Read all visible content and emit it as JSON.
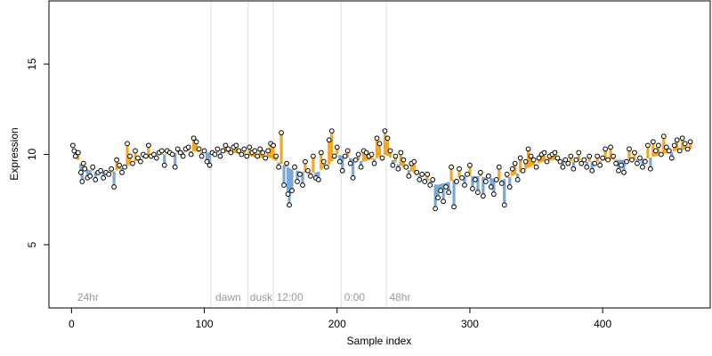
{
  "chart_data": {
    "type": "scatter",
    "title": "",
    "xlabel": "Sample index",
    "ylabel": "Expression",
    "xlim": [
      -17,
      481
    ],
    "ylim": [
      1.5,
      18.5
    ],
    "x_ticks": [
      0,
      100,
      200,
      300,
      400
    ],
    "y_ticks": [
      5,
      10,
      15
    ],
    "grid": false,
    "legend": "none",
    "colors": {
      "point_fill": "#ffffff",
      "point_stroke": "#000000",
      "segment_above": "#f5a623",
      "segment_below": "#7ba7d6",
      "divider": "#dcdcdc",
      "annotation": "#9a9a9a"
    },
    "vertical_lines": [
      105,
      133,
      152,
      203,
      237
    ],
    "annotations": [
      {
        "x": 3,
        "label": "24hr"
      },
      {
        "x": 107,
        "label": "dawn"
      },
      {
        "x": 133,
        "label": "dusk"
      },
      {
        "x": 153,
        "label": "12:00"
      },
      {
        "x": 204,
        "label": "0:00"
      },
      {
        "x": 238,
        "label": "48hr"
      }
    ],
    "anchors": [
      [
        1,
        10.5
      ],
      [
        5,
        9.7
      ],
      [
        10,
        9.2
      ],
      [
        20,
        9.0
      ],
      [
        30,
        9.0
      ],
      [
        40,
        9.3
      ],
      [
        50,
        9.7
      ],
      [
        60,
        9.9
      ],
      [
        70,
        10.0
      ],
      [
        80,
        10.1
      ],
      [
        90,
        10.2
      ],
      [
        100,
        10.1
      ],
      [
        105,
        10.1
      ],
      [
        110,
        10.1
      ],
      [
        120,
        10.1
      ],
      [
        130,
        10.0
      ],
      [
        135,
        9.9
      ],
      [
        140,
        9.8
      ],
      [
        150,
        9.8
      ],
      [
        155,
        9.6
      ],
      [
        165,
        9.2
      ],
      [
        175,
        9.0
      ],
      [
        185,
        9.0
      ],
      [
        195,
        9.5
      ],
      [
        200,
        10.0
      ],
      [
        210,
        9.8
      ],
      [
        220,
        9.6
      ],
      [
        230,
        9.8
      ],
      [
        237,
        10.0
      ],
      [
        245,
        9.5
      ],
      [
        255,
        9.1
      ],
      [
        265,
        8.7
      ],
      [
        275,
        8.3
      ],
      [
        285,
        8.5
      ],
      [
        295,
        8.8
      ],
      [
        305,
        8.8
      ],
      [
        315,
        8.7
      ],
      [
        325,
        8.6
      ],
      [
        335,
        8.9
      ],
      [
        345,
        9.3
      ],
      [
        355,
        9.6
      ],
      [
        365,
        9.7
      ],
      [
        375,
        9.6
      ],
      [
        385,
        9.6
      ],
      [
        395,
        9.6
      ],
      [
        405,
        9.7
      ],
      [
        415,
        9.7
      ],
      [
        425,
        9.7
      ],
      [
        435,
        9.8
      ],
      [
        445,
        10.0
      ],
      [
        455,
        10.2
      ],
      [
        465,
        10.3
      ]
    ],
    "points": [
      [
        1,
        10.5
      ],
      [
        2,
        10.2
      ],
      [
        3,
        9.9
      ],
      [
        5,
        10.1
      ],
      [
        7,
        9.0
      ],
      [
        8,
        8.5
      ],
      [
        9,
        9.5
      ],
      [
        10,
        9.2
      ],
      [
        12,
        8.7
      ],
      [
        14,
        8.8
      ],
      [
        16,
        9.3
      ],
      [
        18,
        8.6
      ],
      [
        20,
        9.0
      ],
      [
        22,
        9.1
      ],
      [
        24,
        8.7
      ],
      [
        26,
        9.0
      ],
      [
        28,
        8.9
      ],
      [
        30,
        9.2
      ],
      [
        32,
        8.2
      ],
      [
        34,
        9.7
      ],
      [
        36,
        9.4
      ],
      [
        38,
        9.0
      ],
      [
        40,
        9.3
      ],
      [
        42,
        10.6
      ],
      [
        44,
        9.9
      ],
      [
        46,
        9.5
      ],
      [
        48,
        10.2
      ],
      [
        50,
        9.8
      ],
      [
        52,
        9.6
      ],
      [
        54,
        10.0
      ],
      [
        56,
        9.9
      ],
      [
        58,
        10.5
      ],
      [
        60,
        9.9
      ],
      [
        62,
        10.0
      ],
      [
        64,
        9.8
      ],
      [
        66,
        10.1
      ],
      [
        68,
        10.2
      ],
      [
        70,
        9.4
      ],
      [
        72,
        10.2
      ],
      [
        74,
        10.1
      ],
      [
        76,
        10.0
      ],
      [
        78,
        9.3
      ],
      [
        80,
        10.3
      ],
      [
        82,
        10.1
      ],
      [
        84,
        9.9
      ],
      [
        86,
        10.3
      ],
      [
        88,
        10.4
      ],
      [
        90,
        10.0
      ],
      [
        92,
        10.9
      ],
      [
        94,
        10.7
      ],
      [
        96,
        10.3
      ],
      [
        98,
        9.9
      ],
      [
        100,
        10.2
      ],
      [
        102,
        9.6
      ],
      [
        104,
        9.4
      ],
      [
        106,
        10.1
      ],
      [
        108,
        10.0
      ],
      [
        110,
        10.3
      ],
      [
        112,
        9.9
      ],
      [
        114,
        10.2
      ],
      [
        116,
        10.5
      ],
      [
        118,
        10.3
      ],
      [
        120,
        10.1
      ],
      [
        122,
        10.4
      ],
      [
        124,
        10.5
      ],
      [
        126,
        10.2
      ],
      [
        128,
        10.0
      ],
      [
        130,
        10.3
      ],
      [
        132,
        9.9
      ],
      [
        134,
        10.4
      ],
      [
        136,
        10.1
      ],
      [
        138,
        10.2
      ],
      [
        140,
        9.9
      ],
      [
        142,
        10.3
      ],
      [
        144,
        10.1
      ],
      [
        146,
        9.8
      ],
      [
        148,
        10.2
      ],
      [
        150,
        10.6
      ],
      [
        152,
        10.5
      ],
      [
        154,
        9.9
      ],
      [
        156,
        9.3
      ],
      [
        158,
        11.2
      ],
      [
        160,
        8.3
      ],
      [
        162,
        9.5
      ],
      [
        163,
        7.8
      ],
      [
        164,
        7.2
      ],
      [
        166,
        8.0
      ],
      [
        168,
        9.3
      ],
      [
        170,
        8.5
      ],
      [
        172,
        8.9
      ],
      [
        174,
        8.3
      ],
      [
        176,
        9.6
      ],
      [
        178,
        9.1
      ],
      [
        180,
        8.8
      ],
      [
        182,
        9.9
      ],
      [
        184,
        8.7
      ],
      [
        186,
        8.6
      ],
      [
        188,
        10.1
      ],
      [
        190,
        9.6
      ],
      [
        192,
        9.3
      ],
      [
        194,
        10.8
      ],
      [
        196,
        11.3
      ],
      [
        198,
        9.9
      ],
      [
        200,
        10.4
      ],
      [
        202,
        9.6
      ],
      [
        204,
        9.1
      ],
      [
        206,
        9.9
      ],
      [
        208,
        10.2
      ],
      [
        210,
        9.5
      ],
      [
        212,
        8.7
      ],
      [
        214,
        9.7
      ],
      [
        216,
        10.0
      ],
      [
        218,
        9.3
      ],
      [
        220,
        10.2
      ],
      [
        222,
        10.1
      ],
      [
        224,
        9.9
      ],
      [
        226,
        10.0
      ],
      [
        228,
        9.5
      ],
      [
        230,
        10.9
      ],
      [
        232,
        10.6
      ],
      [
        234,
        9.8
      ],
      [
        236,
        11.3
      ],
      [
        238,
        10.9
      ],
      [
        240,
        10.2
      ],
      [
        242,
        9.4
      ],
      [
        244,
        9.9
      ],
      [
        246,
        9.2
      ],
      [
        248,
        10.1
      ],
      [
        250,
        9.7
      ],
      [
        252,
        9.3
      ],
      [
        254,
        8.8
      ],
      [
        256,
        9.5
      ],
      [
        258,
        9.6
      ],
      [
        260,
        9.0
      ],
      [
        262,
        8.6
      ],
      [
        264,
        8.9
      ],
      [
        266,
        8.5
      ],
      [
        268,
        8.9
      ],
      [
        270,
        8.3
      ],
      [
        272,
        8.6
      ],
      [
        274,
        7.0
      ],
      [
        276,
        7.6
      ],
      [
        278,
        8.0
      ],
      [
        280,
        7.4
      ],
      [
        282,
        8.2
      ],
      [
        284,
        7.9
      ],
      [
        286,
        9.3
      ],
      [
        288,
        7.1
      ],
      [
        290,
        8.5
      ],
      [
        292,
        9.2
      ],
      [
        294,
        8.7
      ],
      [
        296,
        8.3
      ],
      [
        298,
        8.9
      ],
      [
        300,
        9.4
      ],
      [
        302,
        8.1
      ],
      [
        304,
        8.6
      ],
      [
        306,
        7.9
      ],
      [
        308,
        9.0
      ],
      [
        310,
        7.7
      ],
      [
        312,
        8.5
      ],
      [
        314,
        8.8
      ],
      [
        316,
        8.2
      ],
      [
        318,
        7.8
      ],
      [
        320,
        8.6
      ],
      [
        322,
        9.3
      ],
      [
        324,
        8.4
      ],
      [
        326,
        7.2
      ],
      [
        328,
        8.9
      ],
      [
        330,
        8.2
      ],
      [
        332,
        9.2
      ],
      [
        334,
        9.5
      ],
      [
        336,
        8.6
      ],
      [
        338,
        9.8
      ],
      [
        340,
        9.1
      ],
      [
        342,
        9.6
      ],
      [
        344,
        10.3
      ],
      [
        346,
        9.9
      ],
      [
        348,
        9.7
      ],
      [
        350,
        9.3
      ],
      [
        352,
        9.8
      ],
      [
        354,
        10.0
      ],
      [
        356,
        10.1
      ],
      [
        358,
        9.6
      ],
      [
        360,
        9.9
      ],
      [
        362,
        10.0
      ],
      [
        364,
        10.1
      ],
      [
        366,
        9.8
      ],
      [
        368,
        9.6
      ],
      [
        370,
        9.3
      ],
      [
        372,
        9.7
      ],
      [
        374,
        9.5
      ],
      [
        376,
        9.9
      ],
      [
        378,
        9.2
      ],
      [
        380,
        9.7
      ],
      [
        382,
        10.1
      ],
      [
        384,
        9.5
      ],
      [
        386,
        9.7
      ],
      [
        388,
        9.3
      ],
      [
        390,
        9.9
      ],
      [
        392,
        9.1
      ],
      [
        394,
        9.5
      ],
      [
        396,
        9.9
      ],
      [
        398,
        9.4
      ],
      [
        400,
        9.8
      ],
      [
        402,
        10.3
      ],
      [
        404,
        9.7
      ],
      [
        406,
        10.4
      ],
      [
        408,
        9.9
      ],
      [
        410,
        9.5
      ],
      [
        412,
        9.1
      ],
      [
        414,
        9.4
      ],
      [
        416,
        9.0
      ],
      [
        418,
        9.6
      ],
      [
        420,
        10.3
      ],
      [
        422,
        9.7
      ],
      [
        424,
        10.1
      ],
      [
        426,
        9.5
      ],
      [
        428,
        9.8
      ],
      [
        430,
        9.3
      ],
      [
        432,
        9.6
      ],
      [
        434,
        10.5
      ],
      [
        436,
        9.2
      ],
      [
        438,
        10.7
      ],
      [
        440,
        10.2
      ],
      [
        442,
        10.5
      ],
      [
        444,
        10.0
      ],
      [
        446,
        11.0
      ],
      [
        448,
        10.4
      ],
      [
        450,
        10.2
      ],
      [
        452,
        9.8
      ],
      [
        454,
        10.5
      ],
      [
        456,
        10.8
      ],
      [
        458,
        10.2
      ],
      [
        460,
        10.9
      ],
      [
        462,
        10.6
      ],
      [
        464,
        10.3
      ],
      [
        466,
        10.7
      ]
    ]
  }
}
